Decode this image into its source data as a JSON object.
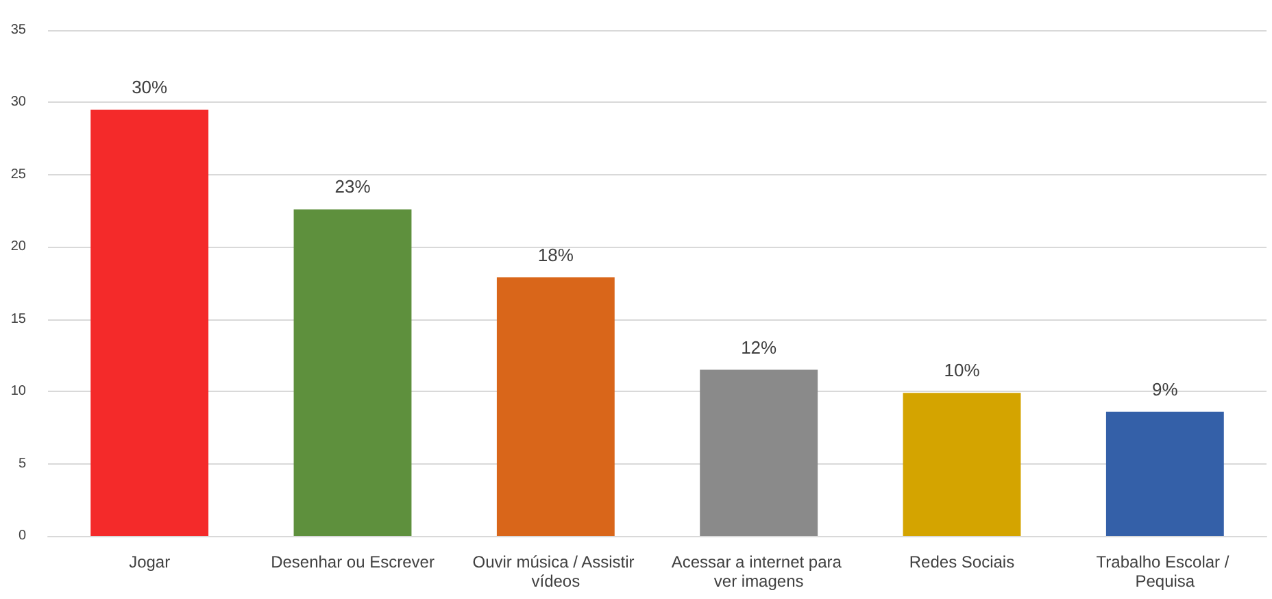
{
  "chart_data": {
    "type": "bar",
    "categories": [
      "Jogar",
      "Desenhar ou Escrever",
      "Ouvir música / Assistir vídeos",
      "Acessar a internet para ver imagens",
      "Redes Sociais",
      "Trabalho Escolar / Pequisa"
    ],
    "values": [
      29.5,
      22.6,
      17.9,
      11.5,
      9.9,
      8.6
    ],
    "value_labels": [
      "30%",
      "23%",
      "18%",
      "12%",
      "10%",
      "9%"
    ],
    "colors": [
      "#f42a2a",
      "#5e903d",
      "#d9661a",
      "#8a8a8a",
      "#d4a400",
      "#3460a8"
    ],
    "ylim": [
      0,
      35
    ],
    "yticks": [
      0,
      5,
      10,
      15,
      20,
      25,
      30,
      35
    ],
    "grid": "y"
  }
}
